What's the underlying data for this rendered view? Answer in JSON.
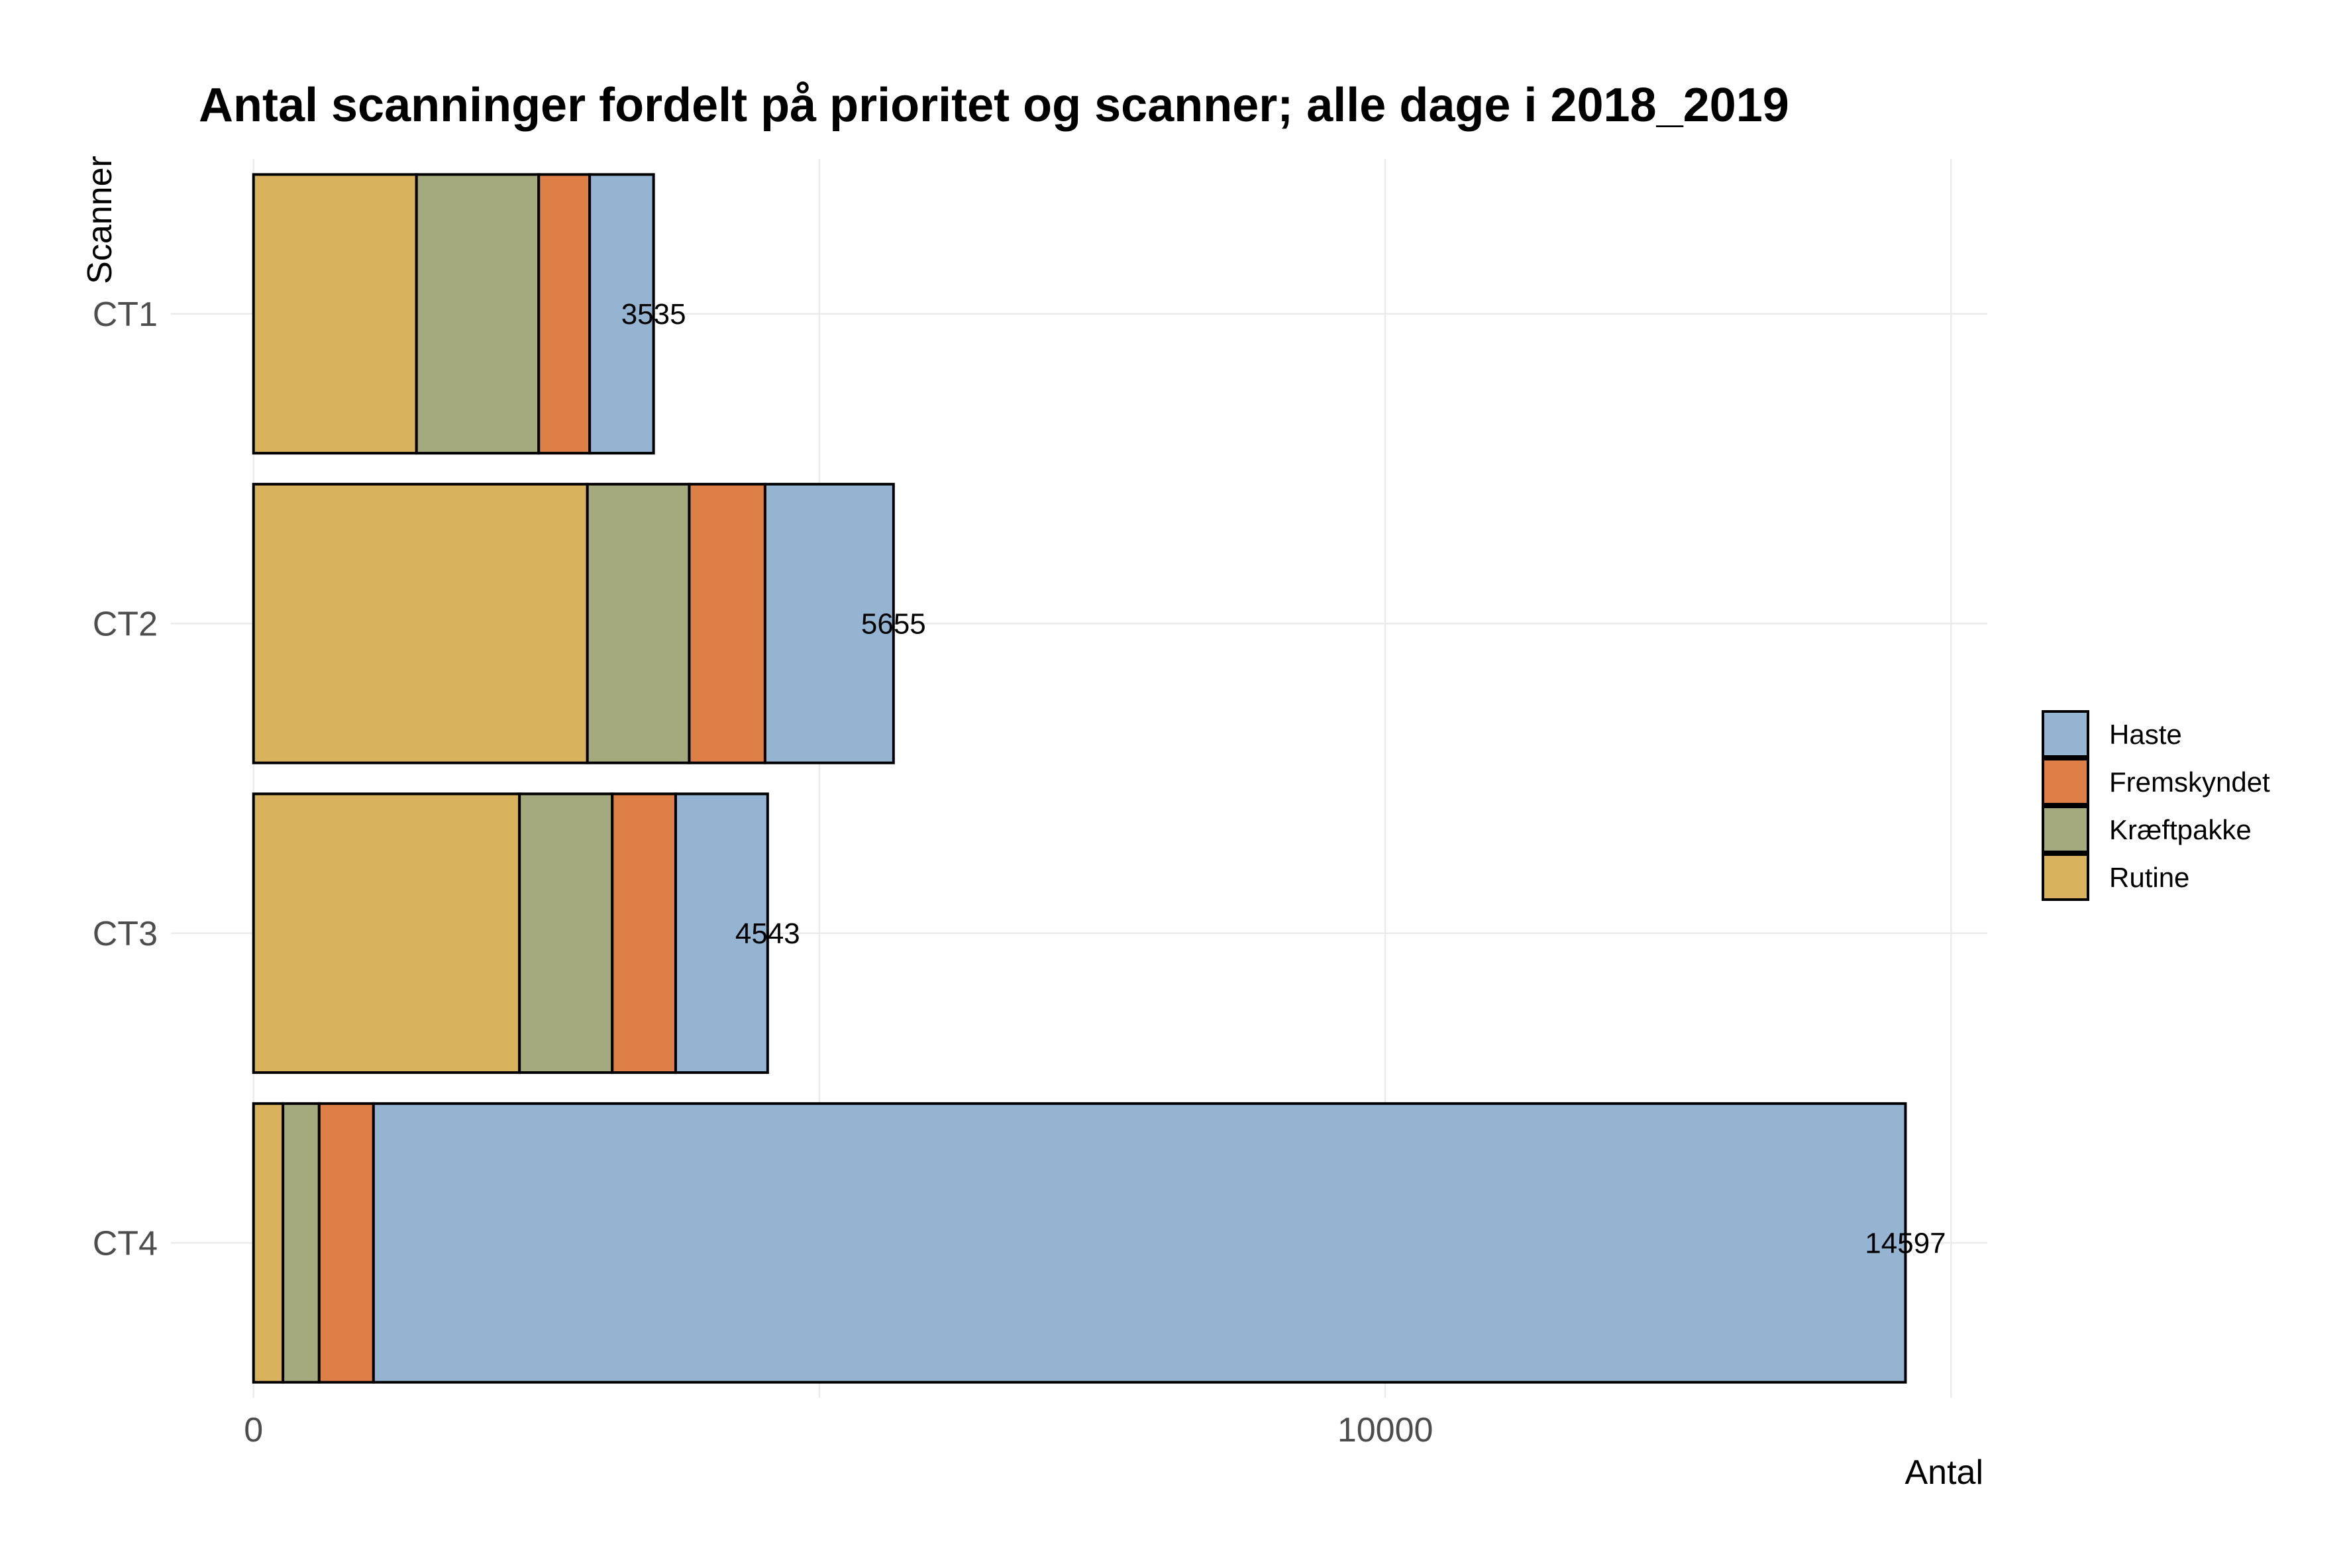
{
  "chart_data": {
    "type": "bar",
    "orientation": "horizontal",
    "stacked": true,
    "title": "Antal scanninger fordelt på prioritet og scanner; alle dage i 2018_2019",
    "xlabel": "Antal",
    "ylabel": "Scanner",
    "categories": [
      "CT1",
      "CT2",
      "CT3",
      "CT4"
    ],
    "series": [
      {
        "name": "Rutine",
        "color": "#D9B25E",
        "values": [
          1440,
          2950,
          2350,
          260
        ]
      },
      {
        "name": "Kræftpakke",
        "color": "#A4AA7E",
        "values": [
          1080,
          900,
          820,
          320
        ]
      },
      {
        "name": "Fremskyndet",
        "color": "#DE7F48",
        "values": [
          450,
          670,
          560,
          480
        ]
      },
      {
        "name": "Haste",
        "color": "#94B4D1",
        "values": [
          565,
          1135,
          813,
          13537
        ]
      }
    ],
    "totals": [
      3535,
      5655,
      4543,
      14597
    ],
    "total_labels": [
      "3535",
      "5655",
      "4543",
      "14597"
    ],
    "xlim": [
      -730,
      15320
    ],
    "x_ticks": [
      0,
      10000
    ],
    "x_tick_labels": [
      "0",
      "10000"
    ],
    "x_minor_gridlines": [
      5000,
      15000
    ],
    "grid": true,
    "legend": {
      "position": "right",
      "order": [
        "Haste",
        "Fremskyndet",
        "Kræftpakke",
        "Rutine"
      ]
    }
  }
}
